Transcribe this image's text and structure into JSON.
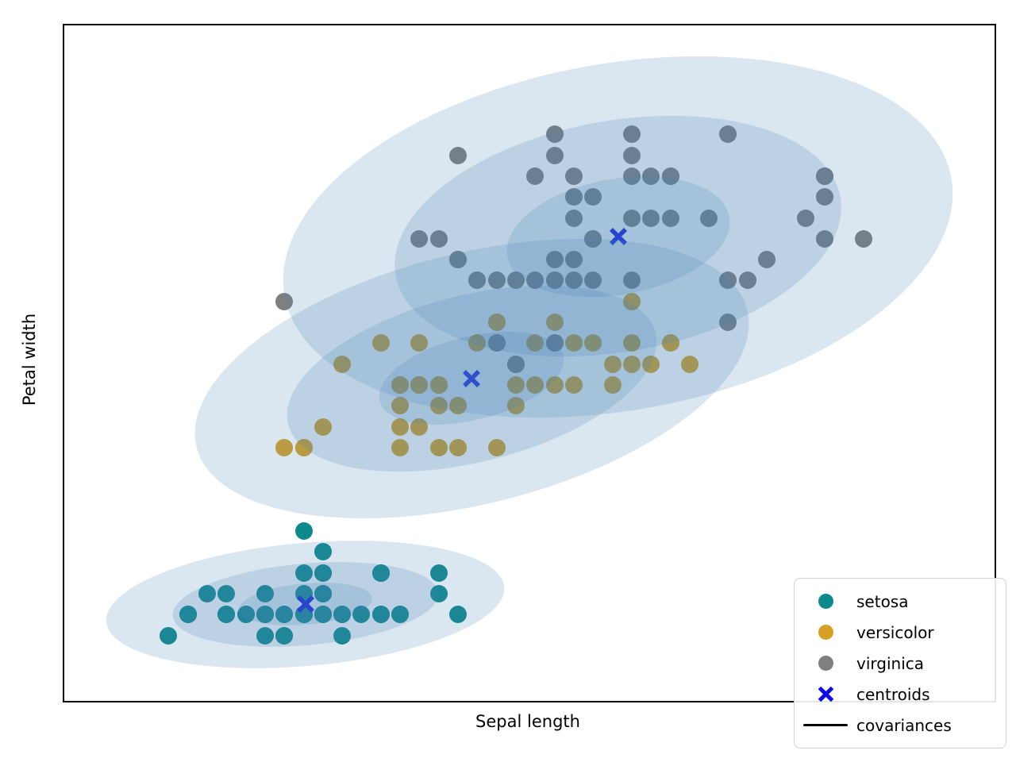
{
  "figure": {
    "xlabel": "Sepal length",
    "ylabel": "Petal width"
  },
  "legend": {
    "items": [
      {
        "label": "setosa",
        "marker": "dot",
        "color": "#0e8a8d"
      },
      {
        "label": "versicolor",
        "marker": "dot",
        "color": "#d7a126"
      },
      {
        "label": "virginica",
        "marker": "dot",
        "color": "#7f7f7f"
      },
      {
        "label": "centroids",
        "marker": "cross",
        "color": "#0d0deb"
      },
      {
        "label": "covariances",
        "marker": "line",
        "color": "#000000"
      }
    ]
  },
  "chart_data": {
    "type": "scatter",
    "title": "",
    "xlabel": "Sepal length",
    "ylabel": "Petal width",
    "xlim": [
      3.76,
      8.58
    ],
    "ylim": [
      -0.213,
      3.022
    ],
    "grid": false,
    "legend_position": "lower right",
    "marker_px": 22,
    "series": [
      {
        "name": "setosa",
        "color": "#0e8a8d",
        "points": [
          [
            5.1,
            0.2
          ],
          [
            4.9,
            0.2
          ],
          [
            4.7,
            0.2
          ],
          [
            4.6,
            0.2
          ],
          [
            5.0,
            0.2
          ],
          [
            5.4,
            0.4
          ],
          [
            4.6,
            0.3
          ],
          [
            5.0,
            0.2
          ],
          [
            4.4,
            0.2
          ],
          [
            4.9,
            0.1
          ],
          [
            5.4,
            0.2
          ],
          [
            4.8,
            0.2
          ],
          [
            4.8,
            0.1
          ],
          [
            4.3,
            0.1
          ],
          [
            5.8,
            0.2
          ],
          [
            5.7,
            0.4
          ],
          [
            5.4,
            0.4
          ],
          [
            5.1,
            0.3
          ],
          [
            5.7,
            0.3
          ],
          [
            5.1,
            0.3
          ],
          [
            5.4,
            0.2
          ],
          [
            5.1,
            0.4
          ],
          [
            4.6,
            0.2
          ],
          [
            5.1,
            0.5
          ],
          [
            4.8,
            0.2
          ],
          [
            5.0,
            0.2
          ],
          [
            5.0,
            0.4
          ],
          [
            5.2,
            0.2
          ],
          [
            5.2,
            0.2
          ],
          [
            4.7,
            0.2
          ],
          [
            4.8,
            0.2
          ],
          [
            5.4,
            0.4
          ],
          [
            5.2,
            0.1
          ],
          [
            5.5,
            0.2
          ],
          [
            4.9,
            0.2
          ],
          [
            5.0,
            0.2
          ],
          [
            5.5,
            0.2
          ],
          [
            4.9,
            0.1
          ],
          [
            4.4,
            0.2
          ],
          [
            5.1,
            0.2
          ],
          [
            5.0,
            0.3
          ],
          [
            4.5,
            0.3
          ],
          [
            4.4,
            0.2
          ],
          [
            5.0,
            0.6
          ],
          [
            5.1,
            0.4
          ],
          [
            4.8,
            0.3
          ],
          [
            5.1,
            0.2
          ],
          [
            4.6,
            0.2
          ],
          [
            5.3,
            0.2
          ],
          [
            5.0,
            0.2
          ]
        ]
      },
      {
        "name": "versicolor",
        "color": "#d7a126",
        "points": [
          [
            7.0,
            1.4
          ],
          [
            6.4,
            1.5
          ],
          [
            6.9,
            1.5
          ],
          [
            5.5,
            1.3
          ],
          [
            6.5,
            1.5
          ],
          [
            5.7,
            1.3
          ],
          [
            6.3,
            1.6
          ],
          [
            4.9,
            1.0
          ],
          [
            6.6,
            1.3
          ],
          [
            5.2,
            1.4
          ],
          [
            5.0,
            1.0
          ],
          [
            5.9,
            1.5
          ],
          [
            6.0,
            1.0
          ],
          [
            6.1,
            1.4
          ],
          [
            5.6,
            1.3
          ],
          [
            6.7,
            1.4
          ],
          [
            5.6,
            1.5
          ],
          [
            5.8,
            1.0
          ],
          [
            6.2,
            1.5
          ],
          [
            5.6,
            1.1
          ],
          [
            5.9,
            1.8
          ],
          [
            6.1,
            1.3
          ],
          [
            6.3,
            1.5
          ],
          [
            6.1,
            1.2
          ],
          [
            6.4,
            1.3
          ],
          [
            6.6,
            1.4
          ],
          [
            6.8,
            1.4
          ],
          [
            6.7,
            1.7
          ],
          [
            6.0,
            1.5
          ],
          [
            5.7,
            1.0
          ],
          [
            5.5,
            1.1
          ],
          [
            5.5,
            1.0
          ],
          [
            5.8,
            1.2
          ],
          [
            6.0,
            1.6
          ],
          [
            5.4,
            1.5
          ],
          [
            6.0,
            1.6
          ],
          [
            6.7,
            1.5
          ],
          [
            6.3,
            1.3
          ],
          [
            5.6,
            1.3
          ],
          [
            5.5,
            1.3
          ],
          [
            5.5,
            1.2
          ],
          [
            6.1,
            1.4
          ],
          [
            5.8,
            1.2
          ],
          [
            5.0,
            1.0
          ],
          [
            5.6,
            1.3
          ],
          [
            5.7,
            1.2
          ],
          [
            5.7,
            1.3
          ],
          [
            6.2,
            1.3
          ],
          [
            5.1,
            1.1
          ],
          [
            5.7,
            1.3
          ]
        ]
      },
      {
        "name": "virginica",
        "color": "#7f7f7f",
        "points": [
          [
            6.3,
            2.5
          ],
          [
            5.8,
            1.9
          ],
          [
            7.1,
            2.1
          ],
          [
            6.3,
            1.8
          ],
          [
            6.5,
            2.2
          ],
          [
            7.6,
            2.1
          ],
          [
            4.9,
            1.7
          ],
          [
            7.3,
            1.8
          ],
          [
            6.7,
            1.8
          ],
          [
            7.2,
            2.5
          ],
          [
            6.5,
            2.0
          ],
          [
            6.4,
            1.9
          ],
          [
            6.8,
            2.1
          ],
          [
            5.7,
            2.0
          ],
          [
            5.8,
            2.4
          ],
          [
            6.4,
            2.3
          ],
          [
            6.5,
            1.8
          ],
          [
            7.7,
            2.2
          ],
          [
            7.7,
            2.3
          ],
          [
            6.0,
            1.5
          ],
          [
            6.9,
            2.3
          ],
          [
            5.6,
            2.0
          ],
          [
            7.7,
            2.0
          ],
          [
            6.3,
            1.8
          ],
          [
            6.7,
            2.1
          ],
          [
            7.2,
            1.8
          ],
          [
            6.2,
            1.8
          ],
          [
            6.1,
            1.8
          ],
          [
            6.4,
            2.1
          ],
          [
            7.2,
            1.6
          ],
          [
            7.4,
            1.9
          ],
          [
            7.9,
            2.0
          ],
          [
            6.4,
            2.2
          ],
          [
            6.3,
            1.5
          ],
          [
            6.1,
            1.4
          ],
          [
            7.7,
            2.3
          ],
          [
            6.3,
            2.4
          ],
          [
            6.4,
            1.8
          ],
          [
            6.0,
            1.8
          ],
          [
            6.9,
            2.1
          ],
          [
            6.7,
            2.4
          ],
          [
            6.9,
            2.3
          ],
          [
            5.8,
            1.9
          ],
          [
            6.8,
            2.3
          ],
          [
            6.7,
            2.5
          ],
          [
            6.7,
            2.3
          ],
          [
            6.3,
            1.9
          ],
          [
            6.5,
            2.0
          ],
          [
            6.2,
            2.3
          ],
          [
            5.9,
            1.8
          ]
        ]
      }
    ],
    "centroids": {
      "color": "#0d0deb",
      "points": [
        [
          5.01,
          0.25
        ],
        [
          5.87,
          1.33
        ],
        [
          6.63,
          2.01
        ]
      ]
    },
    "covariance_ellipses": {
      "fill": "rgba(70,130,180,0.2)",
      "sigma_scales": [
        1,
        2,
        3
      ],
      "components": [
        {
          "name": "setosa",
          "cx": 5.01,
          "cy": 0.25,
          "a": 0.345,
          "b": 0.098,
          "angle_deg": 5
        },
        {
          "name": "versicolor",
          "cx": 5.87,
          "cy": 1.33,
          "a": 0.49,
          "b": 0.2,
          "angle_deg": 14
        },
        {
          "name": "virginica",
          "cx": 6.63,
          "cy": 2.01,
          "a": 0.585,
          "b": 0.277,
          "angle_deg": 10
        }
      ]
    }
  }
}
